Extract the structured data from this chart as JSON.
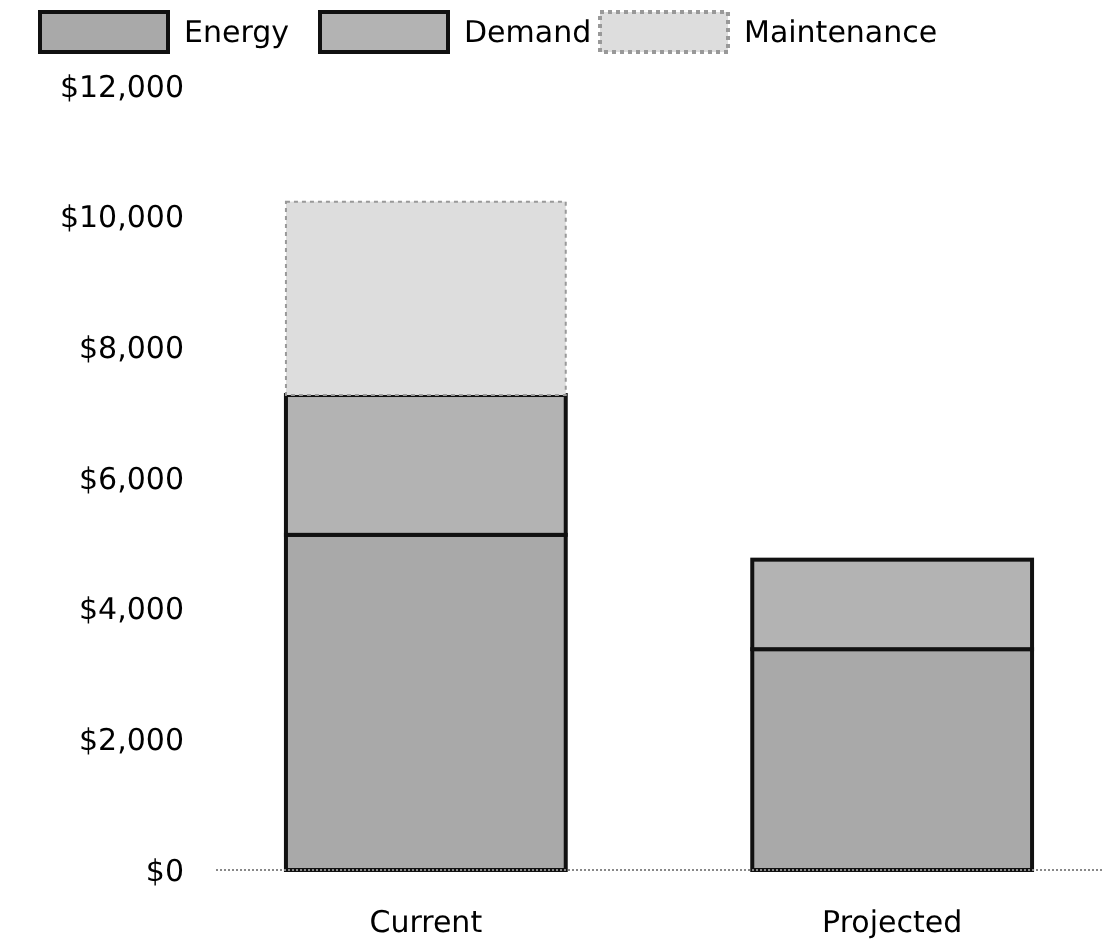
{
  "chart_data": {
    "type": "bar",
    "stacked": true,
    "categories": [
      "Current",
      "Projected"
    ],
    "series": [
      {
        "name": "Energy",
        "color": "#a9a9a9",
        "values": [
          5130,
          3380
        ]
      },
      {
        "name": "Demand",
        "color": "#b3b3b3",
        "values": [
          2140,
          1370
        ]
      },
      {
        "name": "Maintenance",
        "color": "#dddddd",
        "values": [
          2960,
          null
        ]
      }
    ],
    "ylim": [
      0,
      12000
    ],
    "yticks": [
      {
        "value": 0,
        "label": "$0"
      },
      {
        "value": 2000,
        "label": "$2,000"
      },
      {
        "value": 4000,
        "label": "$4,000"
      },
      {
        "value": 6000,
        "label": "$6,000"
      },
      {
        "value": 8000,
        "label": "$8,000"
      },
      {
        "value": 10000,
        "label": "$10,000"
      },
      {
        "value": 12000,
        "label": "$12,000"
      }
    ],
    "grid": false,
    "legend": "top left"
  }
}
